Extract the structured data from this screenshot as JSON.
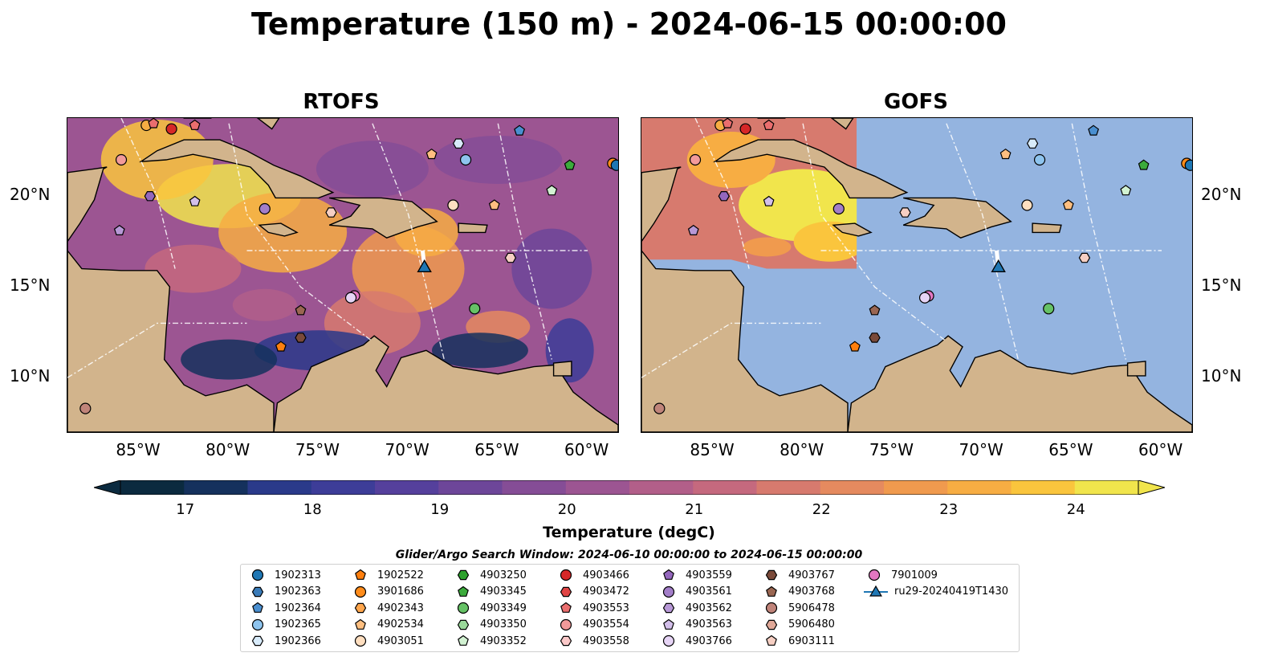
{
  "figure": {
    "title": "Temperature (150 m) - 2024-06-15 00:00:00",
    "search_window": "Glider/Argo Search Window: 2024-06-10 00:00:00 to 2024-06-15 00:00:00"
  },
  "panels": [
    {
      "title": "RTOFS"
    },
    {
      "title": "GOFS"
    }
  ],
  "axes": {
    "x_ticks": [
      "85°W",
      "80°W",
      "75°W",
      "70°W",
      "65°W",
      "60°W"
    ],
    "y_ticks": [
      "20°N",
      "15°N",
      "10°N"
    ],
    "lon_range": [
      -89,
      -58.3
    ],
    "lat_range": [
      7,
      24.3
    ]
  },
  "colorbar": {
    "label": "Temperature (degC)",
    "ticks": [
      "17",
      "18",
      "19",
      "20",
      "21",
      "22",
      "23",
      "24"
    ],
    "range": [
      16.5,
      24.5
    ],
    "extend": "both",
    "colors": [
      "#0b2a3f",
      "#15315d",
      "#2a3a8a",
      "#3d3d98",
      "#55409c",
      "#6d4699",
      "#854d96",
      "#9c5592",
      "#b25f89",
      "#c5697e",
      "#d77a6e",
      "#e58a5f",
      "#f09a4e",
      "#f7ad43",
      "#fac53d",
      "#f1e54c"
    ]
  },
  "legend": {
    "items": [
      {
        "label": "1902313",
        "marker": "circle",
        "color": "#1f77b4"
      },
      {
        "label": "1902363",
        "marker": "hexagon",
        "color": "#3a7bb8"
      },
      {
        "label": "1902364",
        "marker": "pentagon",
        "color": "#4a8fd0"
      },
      {
        "label": "1902365",
        "marker": "circle",
        "color": "#8ec4ee"
      },
      {
        "label": "1902366",
        "marker": "hexagon",
        "color": "#d8ebfa"
      },
      {
        "label": "1902522",
        "marker": "pentagon",
        "color": "#ff7f0e"
      },
      {
        "label": "3901686",
        "marker": "circle",
        "color": "#ff8c1a"
      },
      {
        "label": "4902343",
        "marker": "hexagon",
        "color": "#ffa64d"
      },
      {
        "label": "4902534",
        "marker": "pentagon",
        "color": "#ffbf80"
      },
      {
        "label": "4903051",
        "marker": "circle",
        "color": "#ffdfc0"
      },
      {
        "label": "4903250",
        "marker": "hexagon",
        "color": "#2ca02c"
      },
      {
        "label": "4903345",
        "marker": "pentagon",
        "color": "#3cab3c"
      },
      {
        "label": "4903349",
        "marker": "circle",
        "color": "#66c266"
      },
      {
        "label": "4903350",
        "marker": "hexagon",
        "color": "#9ad89a"
      },
      {
        "label": "4903352",
        "marker": "pentagon",
        "color": "#d2f2d2"
      },
      {
        "label": "4903466",
        "marker": "circle",
        "color": "#d62728"
      },
      {
        "label": "4903472",
        "marker": "hexagon",
        "color": "#e04444"
      },
      {
        "label": "4903553",
        "marker": "pentagon",
        "color": "#ea6e6e"
      },
      {
        "label": "4903554",
        "marker": "circle",
        "color": "#f29a9a"
      },
      {
        "label": "4903558",
        "marker": "hexagon",
        "color": "#fac8c8"
      },
      {
        "label": "4903559",
        "marker": "pentagon",
        "color": "#9467bd"
      },
      {
        "label": "4903561",
        "marker": "circle",
        "color": "#a37ec9"
      },
      {
        "label": "4903562",
        "marker": "hexagon",
        "color": "#b798d6"
      },
      {
        "label": "4903563",
        "marker": "pentagon",
        "color": "#d3bfea"
      },
      {
        "label": "4903766",
        "marker": "circle",
        "color": "#e6d4f5"
      },
      {
        "label": "4903767",
        "marker": "hexagon",
        "color": "#7a4a3a"
      },
      {
        "label": "4903768",
        "marker": "pentagon",
        "color": "#9a6652"
      },
      {
        "label": "5906478",
        "marker": "circle",
        "color": "#c0847a"
      },
      {
        "label": "5906480",
        "marker": "hexagon",
        "color": "#e0a898"
      },
      {
        "label": "6903111",
        "marker": "pentagon",
        "color": "#f6cfc3"
      },
      {
        "label": "7901009",
        "marker": "circle",
        "color": "#e377c2"
      },
      {
        "label": "ru29-20240419T1430",
        "marker": "triangle-line",
        "color": "#1f77b4"
      }
    ]
  },
  "floats": [
    {
      "lon": -84.6,
      "lat": 23.9,
      "marker": "circle",
      "color": "#f7ad43"
    },
    {
      "lon": -84.2,
      "lat": 24.0,
      "marker": "pentagon",
      "color": "#ea6e6e"
    },
    {
      "lon": -83.2,
      "lat": 23.7,
      "marker": "circle",
      "color": "#d62728"
    },
    {
      "lon": -81.9,
      "lat": 23.9,
      "marker": "pentagon",
      "color": "#ea6e6e"
    },
    {
      "lon": -86.0,
      "lat": 22.0,
      "marker": "circle",
      "color": "#f29a9a"
    },
    {
      "lon": -84.4,
      "lat": 20.0,
      "marker": "hexagon",
      "color": "#9467bd"
    },
    {
      "lon": -81.9,
      "lat": 19.7,
      "marker": "pentagon",
      "color": "#d3bfea"
    },
    {
      "lon": -78.0,
      "lat": 19.3,
      "marker": "circle",
      "color": "#a37ec9"
    },
    {
      "lon": -86.1,
      "lat": 18.1,
      "marker": "pentagon",
      "color": "#b798d6"
    },
    {
      "lon": -74.3,
      "lat": 19.1,
      "marker": "hexagon",
      "color": "#f6cfc3"
    },
    {
      "lon": -68.7,
      "lat": 22.3,
      "marker": "pentagon",
      "color": "#ffbf80"
    },
    {
      "lon": -67.2,
      "lat": 22.9,
      "marker": "hexagon",
      "color": "#d8ebfa"
    },
    {
      "lon": -66.8,
      "lat": 22.0,
      "marker": "circle",
      "color": "#8ec4ee"
    },
    {
      "lon": -63.8,
      "lat": 23.6,
      "marker": "pentagon",
      "color": "#4a8fd0"
    },
    {
      "lon": -61.0,
      "lat": 21.7,
      "marker": "pentagon",
      "color": "#3cab3c"
    },
    {
      "lon": -58.6,
      "lat": 21.8,
      "marker": "circle",
      "color": "#ff8c1a"
    },
    {
      "lon": -58.4,
      "lat": 21.7,
      "marker": "circle",
      "color": "#1f77b4"
    },
    {
      "lon": -67.5,
      "lat": 19.5,
      "marker": "circle",
      "color": "#ffdfc0"
    },
    {
      "lon": -65.2,
      "lat": 19.5,
      "marker": "pentagon",
      "color": "#ffbf80"
    },
    {
      "lon": -62.0,
      "lat": 20.3,
      "marker": "pentagon",
      "color": "#d2f2d2"
    },
    {
      "lon": -64.3,
      "lat": 16.6,
      "marker": "hexagon",
      "color": "#f6cfc3"
    },
    {
      "lon": -73.0,
      "lat": 14.5,
      "marker": "circle",
      "color": "#e377c2"
    },
    {
      "lon": -73.2,
      "lat": 14.4,
      "marker": "circle",
      "color": "#e6d4f5"
    },
    {
      "lon": -66.3,
      "lat": 13.8,
      "marker": "circle",
      "color": "#66c266"
    },
    {
      "lon": -76.0,
      "lat": 13.7,
      "marker": "pentagon",
      "color": "#9a6652"
    },
    {
      "lon": -76.0,
      "lat": 12.2,
      "marker": "hexagon",
      "color": "#7a4a3a"
    },
    {
      "lon": -77.1,
      "lat": 11.7,
      "marker": "pentagon",
      "color": "#ff7f0e"
    },
    {
      "lon": -88.0,
      "lat": 8.3,
      "marker": "circle",
      "color": "#c0847a"
    }
  ],
  "glider": {
    "lon": -69.1,
    "lat": 16.1,
    "color": "#1f77b4",
    "track_end_lon": -69.2,
    "track_end_lat": 17.0
  }
}
